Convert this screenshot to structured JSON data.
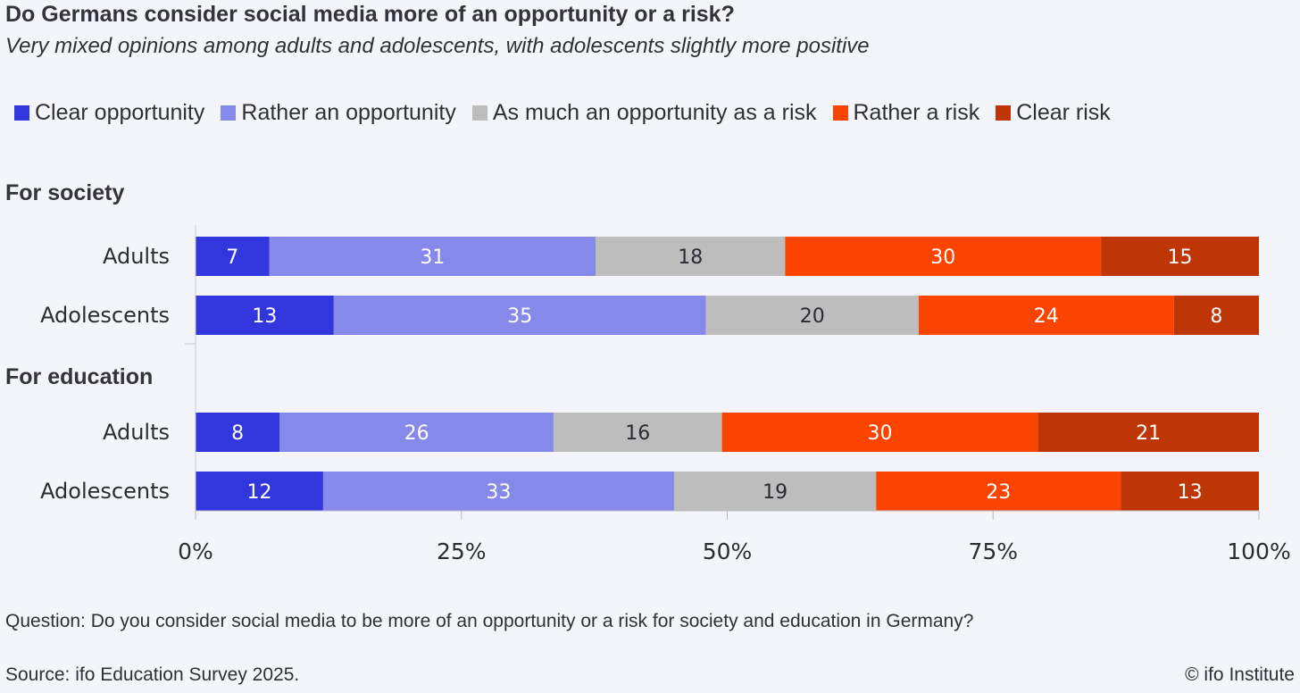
{
  "chart_data": {
    "type": "bar",
    "orientation": "horizontal",
    "stacked": true,
    "title": "Do Germans consider social media more of an opportunity or a risk?",
    "subtitle": "Very mixed opinions among adults and adolescents, with adolescents slightly more positive",
    "xlabel": "",
    "ylabel": "",
    "xlim": [
      0,
      100
    ],
    "x_ticks": [
      "0%",
      "25%",
      "50%",
      "75%",
      "100%"
    ],
    "x_tick_values": [
      0,
      25,
      50,
      75,
      100
    ],
    "legend_position": "top-left",
    "series_names": [
      "Clear opportunity",
      "Rather an opportunity",
      "As much an opportunity as a risk",
      "Rather a risk",
      "Clear risk"
    ],
    "series_colors": [
      "#3236dd",
      "#8589ea",
      "#bdbdbd",
      "#fb4400",
      "#be3506"
    ],
    "label_colors": [
      "#ffffff",
      "#ffffff",
      "#2b2b33",
      "#ffffff",
      "#ffffff"
    ],
    "groups": [
      {
        "label": "For society",
        "rows": [
          {
            "label": "Adults",
            "values": [
              7,
              31,
              18,
              30,
              15
            ]
          },
          {
            "label": "Adolescents",
            "values": [
              13,
              35,
              20,
              24,
              8
            ]
          }
        ]
      },
      {
        "label": "For education",
        "rows": [
          {
            "label": "Adults",
            "values": [
              8,
              26,
              16,
              30,
              21
            ]
          },
          {
            "label": "Adolescents",
            "values": [
              12,
              33,
              19,
              23,
              13
            ]
          }
        ]
      }
    ]
  },
  "footer": {
    "question": "Question: Do you consider social media to be more of an opportunity or a risk for society and education in Germany?",
    "source": "Source: ifo Education Survey 2025.",
    "copyright": "© ifo Institute"
  }
}
